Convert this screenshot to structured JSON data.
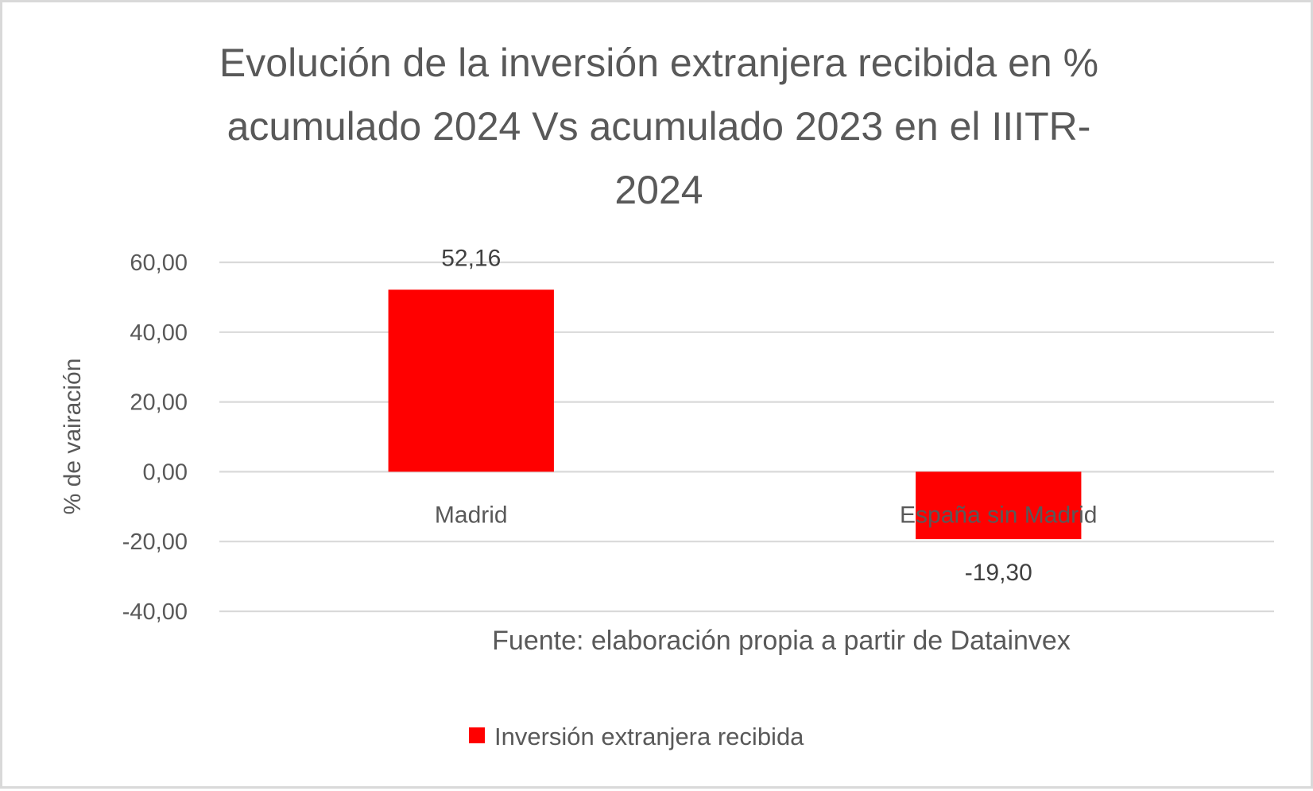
{
  "chart_data": {
    "type": "bar",
    "title_lines": [
      "Evolución de la inversión extranjera recibida en %",
      "acumulado 2024 Vs acumulado 2023 en el IIITR-",
      "2024"
    ],
    "title": "Evolución de la inversión extranjera recibida en % acumulado 2024 Vs acumulado 2023 en el IIITR-2024",
    "xlabel": "",
    "ylabel": "% de vairación",
    "categories": [
      "Madrid",
      "España sin Madrid"
    ],
    "series": [
      {
        "name": "Inversión extranjera recibida",
        "values": [
          52.16,
          -19.3
        ],
        "data_labels": [
          "52,16",
          "-19,30"
        ],
        "color": "#ff0000"
      }
    ],
    "ylim": [
      -40,
      60
    ],
    "yticks": [
      60,
      40,
      20,
      0,
      -20,
      -40
    ],
    "ytick_labels": [
      "60,00",
      "40,00",
      "20,00",
      "0,00",
      "-20,00",
      "-40,00"
    ],
    "grid": true,
    "gridline_color": "#d9d9d9",
    "legend": {
      "position": "bottom",
      "entries": [
        "Inversión extranjera recibida"
      ]
    },
    "annotation": "Fuente: elaboración propia a partir de Datainvex"
  }
}
